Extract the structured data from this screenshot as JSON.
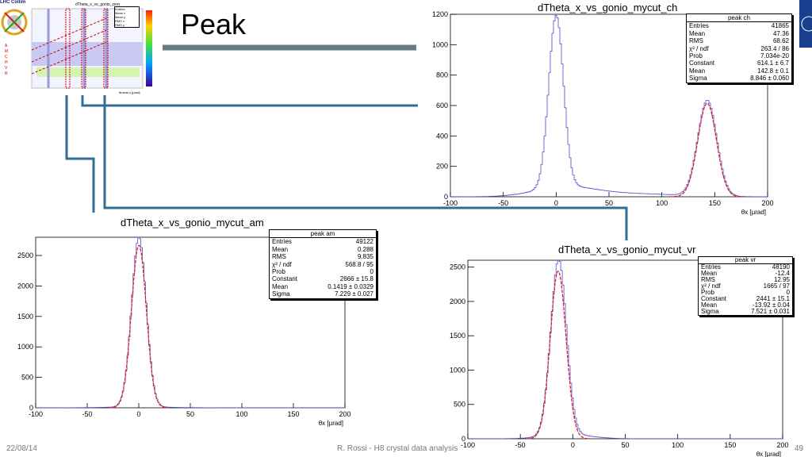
{
  "slide": {
    "title": "Peak",
    "footer_date": "22/08/14",
    "footer_center": "R. Rossi - H8 crystal data analysis",
    "footer_page": "49",
    "logo_text": "LHC Collim"
  },
  "thumbnail": {
    "title": "dTheta_x_vs_gonio_zero",
    "stat_labels": [
      "Entries",
      "Mean x",
      "Mean y",
      "RMS x",
      "RMS y"
    ],
    "side_labels": [
      "A",
      "M",
      "C",
      "H",
      "V",
      "R"
    ],
    "xlabel": "θmeas x [µrad]"
  },
  "chart_data": [
    {
      "id": "ch",
      "type": "line",
      "title": "dTheta_x_vs_gonio_mycut_ch",
      "xlabel": "θx [µrad]",
      "xlim": [
        -100,
        200
      ],
      "ylim": [
        0,
        1200
      ],
      "xticks": [
        "-100",
        "-50",
        "0",
        "50",
        "100",
        "150",
        "200"
      ],
      "yticks": [
        "0",
        "200",
        "400",
        "600",
        "800",
        "1000",
        "1200"
      ],
      "stats": {
        "title": "peak ch",
        "rows": [
          {
            "label": "Entries",
            "value": "41865"
          },
          {
            "label": "Mean",
            "value": "47.36"
          },
          {
            "label": "RMS",
            "value": "68.62"
          },
          {
            "label": "χ² / ndf",
            "value": "263.4 / 86"
          },
          {
            "label": "Prob",
            "value": "7.034e-20"
          },
          {
            "label": "Constant",
            "value": "614.1 ± 6.7"
          },
          {
            "label": "Mean",
            "value": "142.8 ± 0.1"
          },
          {
            "label": "Sigma",
            "value": "8.846 ± 0.060"
          }
        ]
      },
      "series": [
        {
          "style": "histogram",
          "color": "#4a4ad0",
          "components": [
            {
              "amp": 1130,
              "mean": 0,
              "sigma": 7
            },
            {
              "amp": 60,
              "mean": 8,
              "sigma": 28
            },
            {
              "amp": 20,
              "mean": 70,
              "sigma": 45
            },
            {
              "amp": 630,
              "mean": 143,
              "sigma": 9
            }
          ]
        },
        {
          "style": "fit",
          "color": "#e0202a",
          "fit": {
            "amp": 614.1,
            "mean": 142.8,
            "sigma": 8.846
          }
        }
      ]
    },
    {
      "id": "am",
      "type": "line",
      "title": "dTheta_x_vs_gonio_mycut_am",
      "xlabel": "θx [µrad]",
      "xlim": [
        -100,
        200
      ],
      "ylim": [
        0,
        2800
      ],
      "xticks": [
        "-100",
        "-50",
        "0",
        "50",
        "100",
        "150",
        "200"
      ],
      "yticks": [
        "0",
        "500",
        "1000",
        "1500",
        "2000",
        "2500"
      ],
      "stats": {
        "title": "peak am",
        "rows": [
          {
            "label": "Entries",
            "value": "49122"
          },
          {
            "label": "Mean",
            "value": "0.288"
          },
          {
            "label": "RMS",
            "value": "9.835"
          },
          {
            "label": "χ² / ndf",
            "value": "568.8 / 95"
          },
          {
            "label": "Prob",
            "value": "0"
          },
          {
            "label": "Constant",
            "value": "2666 ± 15.8"
          },
          {
            "label": "Mean",
            "value": "0.1419 ± 0.0329"
          },
          {
            "label": "Sigma",
            "value": "7.229 ± 0.027"
          }
        ]
      },
      "series": [
        {
          "style": "histogram",
          "color": "#4a4ad0",
          "components": [
            {
              "amp": 2790,
              "mean": 0.2,
              "sigma": 7.1
            },
            {
              "amp": 15,
              "mean": 0,
              "sigma": 30
            }
          ]
        },
        {
          "style": "fit",
          "color": "#e0202a",
          "fit": {
            "amp": 2666,
            "mean": 0.1419,
            "sigma": 7.229
          }
        }
      ]
    },
    {
      "id": "vr",
      "type": "line",
      "title": "dTheta_x_vs_gonio_mycut_vr",
      "xlabel": "θx [µrad]",
      "xlim": [
        -100,
        200
      ],
      "ylim": [
        0,
        2600
      ],
      "xticks": [
        "-100",
        "-50",
        "0",
        "50",
        "100",
        "150",
        "200"
      ],
      "yticks": [
        "0",
        "500",
        "1000",
        "1500",
        "2000",
        "2500"
      ],
      "stats": {
        "title": "peak vr",
        "rows": [
          {
            "label": "Entries",
            "value": "48190"
          },
          {
            "label": "Mean",
            "value": "-12.4"
          },
          {
            "label": "RMS",
            "value": "12.95"
          },
          {
            "label": "χ² / ndf",
            "value": "1665 / 97"
          },
          {
            "label": "Prob",
            "value": "0"
          },
          {
            "label": "Constant",
            "value": "2441 ± 15.1"
          },
          {
            "label": "Mean",
            "value": "-13.92 ± 0.04"
          },
          {
            "label": "Sigma",
            "value": "7.521 ± 0.031"
          }
        ]
      },
      "series": [
        {
          "style": "histogram",
          "color": "#4a4ad0",
          "components": [
            {
              "amp": 2560,
              "mean": -13.5,
              "sigma": 7.5
            },
            {
              "amp": 60,
              "mean": -5,
              "sigma": 22
            }
          ]
        },
        {
          "style": "fit",
          "color": "#e0202a",
          "fit": {
            "amp": 2441,
            "mean": -13.92,
            "sigma": 7.521
          }
        }
      ]
    }
  ],
  "colors": {
    "connector": "#2f6f93",
    "band": "#4a6470",
    "histogram": "#4a4ad0",
    "fit": "#e0202a",
    "highlight": "#cc0000"
  }
}
